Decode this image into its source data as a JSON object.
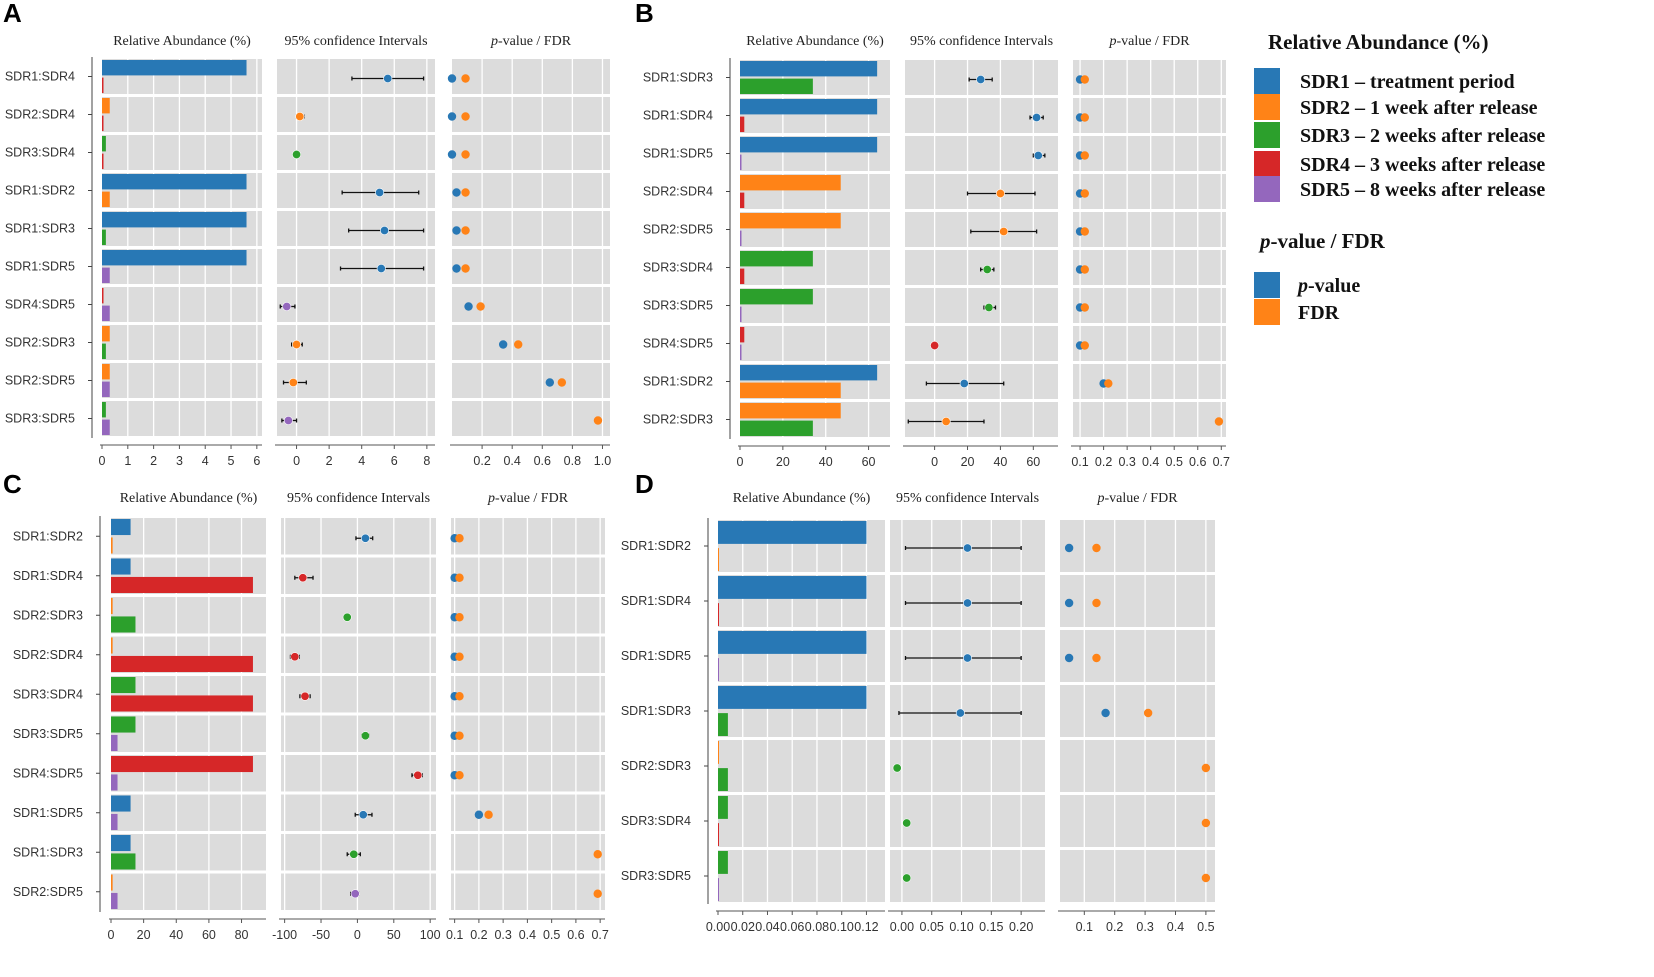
{
  "colors": {
    "SDR1": "#2878b5",
    "SDR2": "#ff8317",
    "SDR3": "#2ca02c",
    "SDR4": "#d62728",
    "SDR5": "#9467bd",
    "pvalue": "#2878b5",
    "fdr": "#ff8317",
    "panel_bg": "#dcdcdc"
  },
  "legend": {
    "ra_title": "Relative Abundance (%)",
    "ra_items": [
      {
        "key": "SDR1",
        "label": "SDR1 – treatment period"
      },
      {
        "key": "SDR2",
        "label": "SDR2 – 1 week after release"
      },
      {
        "key": "SDR3",
        "label": "SDR3 – 2 weeks after release"
      },
      {
        "key": "SDR4",
        "label": "SDR4 – 3 weeks after release"
      },
      {
        "key": "SDR5",
        "label": "SDR5 – 8 weeks after release"
      }
    ],
    "pf_title_prefix": "p",
    "pf_title_suffix": "-value / FDR",
    "pf_items": [
      {
        "key": "pvalue",
        "italic_part": "p",
        "rest": "-value"
      },
      {
        "key": "fdr",
        "italic_part": "",
        "rest": "FDR"
      }
    ]
  },
  "chart_data": [
    {
      "panel": "A",
      "type": "bar",
      "headers": {
        "abundance": "Relative Abundance (%)",
        "ci": "95% confidence Intervals",
        "pv_italic": "p",
        "pv_rest": "-value / FDR"
      },
      "categories": [
        "SDR1:SDR4",
        "SDR2:SDR4",
        "SDR3:SDR4",
        "SDR1:SDR2",
        "SDR1:SDR3",
        "SDR1:SDR5",
        "SDR4:SDR5",
        "SDR2:SDR3",
        "SDR2:SDR5",
        "SDR3:SDR5"
      ],
      "abundance": {
        "xlim": [
          0,
          6.2
        ],
        "ticks": [
          0,
          1,
          2,
          3,
          4,
          5,
          6
        ],
        "ticklabels": [
          "0",
          "1",
          "2",
          "3",
          "4",
          "5",
          "6"
        ],
        "pairs": [
          {
            "a": "SDR1",
            "va": 5.6,
            "b": "SDR4",
            "vb": 0.01
          },
          {
            "a": "SDR2",
            "va": 0.3,
            "b": "SDR4",
            "vb": 0.01
          },
          {
            "a": "SDR3",
            "va": 0.15,
            "b": "SDR4",
            "vb": 0.01
          },
          {
            "a": "SDR1",
            "va": 5.6,
            "b": "SDR2",
            "vb": 0.3
          },
          {
            "a": "SDR1",
            "va": 5.6,
            "b": "SDR3",
            "vb": 0.15
          },
          {
            "a": "SDR1",
            "va": 5.6,
            "b": "SDR5",
            "vb": 0.3
          },
          {
            "a": "SDR4",
            "va": 0.01,
            "b": "SDR5",
            "vb": 0.3
          },
          {
            "a": "SDR2",
            "va": 0.3,
            "b": "SDR3",
            "vb": 0.15
          },
          {
            "a": "SDR2",
            "va": 0.3,
            "b": "SDR5",
            "vb": 0.3
          },
          {
            "a": "SDR3",
            "va": 0.15,
            "b": "SDR5",
            "vb": 0.3
          }
        ]
      },
      "ci": {
        "xlim": [
          -1.2,
          8.5
        ],
        "ticks": [
          0,
          2,
          4,
          6,
          8
        ],
        "ticklabels": [
          "0",
          "2",
          "4",
          "6",
          "8"
        ],
        "points": [
          {
            "est": 5.6,
            "low": 3.4,
            "high": 7.8,
            "color": "SDR1"
          },
          {
            "est": 0.2,
            "low": 0.0,
            "high": 0.45,
            "color": "SDR2"
          },
          {
            "est": 0.0,
            "low": -0.05,
            "high": 0.05,
            "color": "SDR3"
          },
          {
            "est": 5.1,
            "low": 2.8,
            "high": 7.5,
            "color": "SDR1"
          },
          {
            "est": 5.4,
            "low": 3.2,
            "high": 7.8,
            "color": "SDR1"
          },
          {
            "est": 5.2,
            "low": 2.7,
            "high": 7.8,
            "color": "SDR1"
          },
          {
            "est": -0.6,
            "low": -1.0,
            "high": -0.1,
            "color": "SDR5"
          },
          {
            "est": 0.0,
            "low": -0.3,
            "high": 0.35,
            "color": "SDR2"
          },
          {
            "est": -0.2,
            "low": -0.8,
            "high": 0.6,
            "color": "SDR2"
          },
          {
            "est": -0.5,
            "low": -0.9,
            "high": 0.0,
            "color": "SDR5"
          }
        ]
      },
      "pv": {
        "xlim": [
          0,
          1.05
        ],
        "ticks": [
          0.2,
          0.4,
          0.6,
          0.8,
          1.0
        ],
        "ticklabels": [
          "0.2",
          "0.4",
          "0.6",
          "0.8",
          "1.0"
        ],
        "pvalue": [
          0.0,
          0.0,
          0.0,
          0.03,
          0.03,
          0.03,
          0.11,
          0.34,
          0.65,
          null
        ],
        "fdr": [
          0.09,
          0.09,
          0.09,
          0.09,
          0.09,
          0.09,
          0.19,
          0.44,
          0.73,
          0.97
        ]
      }
    },
    {
      "panel": "B",
      "type": "bar",
      "headers": {
        "abundance": "Relative Abundance (%)",
        "ci": "95% confidence Intervals",
        "pv_italic": "p",
        "pv_rest": "-value / FDR"
      },
      "categories": [
        "SDR1:SDR3",
        "SDR1:SDR4",
        "SDR1:SDR5",
        "SDR2:SDR4",
        "SDR2:SDR5",
        "SDR3:SDR4",
        "SDR3:SDR5",
        "SDR4:SDR5",
        "SDR1:SDR2",
        "SDR2:SDR3"
      ],
      "abundance": {
        "xlim": [
          0,
          70
        ],
        "ticks": [
          0,
          20,
          40,
          60
        ],
        "ticklabels": [
          "0",
          "20",
          "40",
          "60"
        ],
        "pairs": [
          {
            "a": "SDR1",
            "va": 64,
            "b": "SDR3",
            "vb": 34
          },
          {
            "a": "SDR1",
            "va": 64,
            "b": "SDR4",
            "vb": 2
          },
          {
            "a": "SDR1",
            "va": 64,
            "b": "SDR5",
            "vb": 0.2
          },
          {
            "a": "SDR2",
            "va": 47,
            "b": "SDR4",
            "vb": 2
          },
          {
            "a": "SDR2",
            "va": 47,
            "b": "SDR5",
            "vb": 0.2
          },
          {
            "a": "SDR3",
            "va": 34,
            "b": "SDR4",
            "vb": 2
          },
          {
            "a": "SDR3",
            "va": 34,
            "b": "SDR5",
            "vb": 0.2
          },
          {
            "a": "SDR4",
            "va": 2,
            "b": "SDR5",
            "vb": 0.2
          },
          {
            "a": "SDR1",
            "va": 64,
            "b": "SDR2",
            "vb": 47
          },
          {
            "a": "SDR2",
            "va": 47,
            "b": "SDR3",
            "vb": 34
          }
        ]
      },
      "ci": {
        "xlim": [
          -18,
          75
        ],
        "ticks": [
          0,
          20,
          40,
          60
        ],
        "ticklabels": [
          "0",
          "20",
          "40",
          "60"
        ],
        "points": [
          {
            "est": 28,
            "low": 21,
            "high": 35,
            "color": "SDR1"
          },
          {
            "est": 62,
            "low": 58,
            "high": 66,
            "color": "SDR1"
          },
          {
            "est": 63,
            "low": 60,
            "high": 67,
            "color": "SDR1"
          },
          {
            "est": 40,
            "low": 20,
            "high": 61,
            "color": "SDR2"
          },
          {
            "est": 42,
            "low": 22,
            "high": 62,
            "color": "SDR2"
          },
          {
            "est": 32,
            "low": 28,
            "high": 36,
            "color": "SDR3"
          },
          {
            "est": 33,
            "low": 30,
            "high": 37,
            "color": "SDR3"
          },
          {
            "est": 0,
            "low": -1,
            "high": 1,
            "color": "SDR4"
          },
          {
            "est": 18,
            "low": -5,
            "high": 42,
            "color": "SDR1"
          },
          {
            "est": 7,
            "low": -16,
            "high": 30,
            "color": "SDR2"
          }
        ]
      },
      "pv": {
        "xlim": [
          0.07,
          0.72
        ],
        "ticks": [
          0.1,
          0.2,
          0.3,
          0.4,
          0.5,
          0.6,
          0.7
        ],
        "ticklabels": [
          "0.1",
          "0.2",
          "0.3",
          "0.4",
          "0.5",
          "0.6",
          "0.7"
        ],
        "pvalue": [
          0.1,
          0.1,
          0.1,
          0.1,
          0.1,
          0.1,
          0.1,
          0.1,
          0.2,
          null
        ],
        "fdr": [
          0.12,
          0.12,
          0.12,
          0.12,
          0.12,
          0.12,
          0.12,
          0.12,
          0.22,
          0.69
        ]
      }
    },
    {
      "panel": "C",
      "type": "bar",
      "headers": {
        "abundance": "Relative Abundance (%)",
        "ci": "95% confidence Intervals",
        "pv_italic": "p",
        "pv_rest": "-value / FDR"
      },
      "categories": [
        "SDR1:SDR2",
        "SDR1:SDR4",
        "SDR2:SDR3",
        "SDR2:SDR4",
        "SDR3:SDR4",
        "SDR3:SDR5",
        "SDR4:SDR5",
        "SDR1:SDR5",
        "SDR1:SDR3",
        "SDR2:SDR5"
      ],
      "abundance": {
        "xlim": [
          0,
          95
        ],
        "ticks": [
          0,
          20,
          40,
          60,
          80
        ],
        "ticklabels": [
          "0",
          "20",
          "40",
          "60",
          "80"
        ],
        "pairs": [
          {
            "a": "SDR1",
            "va": 12,
            "b": "SDR2",
            "vb": 1
          },
          {
            "a": "SDR1",
            "va": 12,
            "b": "SDR4",
            "vb": 87
          },
          {
            "a": "SDR2",
            "va": 1,
            "b": "SDR3",
            "vb": 15
          },
          {
            "a": "SDR2",
            "va": 1,
            "b": "SDR4",
            "vb": 87
          },
          {
            "a": "SDR3",
            "va": 15,
            "b": "SDR4",
            "vb": 87
          },
          {
            "a": "SDR3",
            "va": 15,
            "b": "SDR5",
            "vb": 4
          },
          {
            "a": "SDR4",
            "va": 87,
            "b": "SDR5",
            "vb": 4
          },
          {
            "a": "SDR1",
            "va": 12,
            "b": "SDR5",
            "vb": 4
          },
          {
            "a": "SDR1",
            "va": 12,
            "b": "SDR3",
            "vb": 15
          },
          {
            "a": "SDR2",
            "va": 1,
            "b": "SDR5",
            "vb": 4
          }
        ]
      },
      "ci": {
        "xlim": [
          -105,
          108
        ],
        "ticks": [
          -100,
          -50,
          0,
          50,
          100
        ],
        "ticklabels": [
          "-100",
          "-50",
          "0",
          "50",
          "100"
        ],
        "points": [
          {
            "est": 11,
            "low": -2,
            "high": 21,
            "color": "SDR1"
          },
          {
            "est": -75,
            "low": -86,
            "high": -61,
            "color": "SDR4"
          },
          {
            "est": -14,
            "low": -16,
            "high": -12,
            "color": "SDR3"
          },
          {
            "est": -86,
            "low": -92,
            "high": -80,
            "color": "SDR4"
          },
          {
            "est": -72,
            "low": -79,
            "high": -65,
            "color": "SDR4"
          },
          {
            "est": 11,
            "low": 6,
            "high": 16,
            "color": "SDR3"
          },
          {
            "est": 83,
            "low": 75,
            "high": 89,
            "color": "SDR4"
          },
          {
            "est": 8,
            "low": -3,
            "high": 20,
            "color": "SDR1"
          },
          {
            "est": -5,
            "low": -14,
            "high": 4,
            "color": "SDR3"
          },
          {
            "est": -3,
            "low": -9,
            "high": 2,
            "color": "SDR5"
          }
        ]
      },
      "pv": {
        "xlim": [
          0.085,
          0.72
        ],
        "ticks": [
          0.1,
          0.2,
          0.3,
          0.4,
          0.5,
          0.6,
          0.7
        ],
        "ticklabels": [
          "0.1",
          "0.2",
          "0.3",
          "0.4",
          "0.5",
          "0.6",
          "0.7"
        ],
        "pvalue": [
          0.1,
          0.1,
          0.1,
          0.1,
          0.1,
          0.1,
          0.1,
          0.2,
          null,
          null
        ],
        "fdr": [
          0.12,
          0.12,
          0.12,
          0.12,
          0.12,
          0.12,
          0.12,
          0.24,
          0.69,
          0.69
        ]
      }
    },
    {
      "panel": "D",
      "type": "bar",
      "headers": {
        "abundance": "Relative Abundance (%)",
        "ci": "95% confidence Intervals",
        "pv_italic": "p",
        "pv_rest": "-value / FDR"
      },
      "categories": [
        "SDR1:SDR2",
        "SDR1:SDR4",
        "SDR1:SDR5",
        "SDR1:SDR3",
        "SDR2:SDR3",
        "SDR3:SDR4",
        "SDR3:SDR5"
      ],
      "abundance": {
        "xlim": [
          0,
          0.135
        ],
        "ticks": [
          0,
          0.02,
          0.04,
          0.06,
          0.08,
          0.1,
          0.12
        ],
        "ticklabels": [
          "0.00",
          "0.02",
          "0.04",
          "0.06",
          "0.08",
          "0.10",
          "0.12"
        ],
        "pairs": [
          {
            "a": "SDR1",
            "va": 0.12,
            "b": "SDR2",
            "vb": 0
          },
          {
            "a": "SDR1",
            "va": 0.12,
            "b": "SDR4",
            "vb": 0
          },
          {
            "a": "SDR1",
            "va": 0.12,
            "b": "SDR5",
            "vb": 0
          },
          {
            "a": "SDR1",
            "va": 0.12,
            "b": "SDR3",
            "vb": 0.008
          },
          {
            "a": "SDR2",
            "va": 0,
            "b": "SDR3",
            "vb": 0.008
          },
          {
            "a": "SDR3",
            "va": 0.008,
            "b": "SDR4",
            "vb": 0
          },
          {
            "a": "SDR3",
            "va": 0.008,
            "b": "SDR5",
            "vb": 0
          }
        ]
      },
      "ci": {
        "xlim": [
          -0.02,
          0.24
        ],
        "ticks": [
          0,
          0.05,
          0.1,
          0.15,
          0.2
        ],
        "ticklabels": [
          "0.00",
          "0.05",
          "0.10",
          "0.15",
          "0.20"
        ],
        "points": [
          {
            "est": 0.11,
            "low": 0.006,
            "high": 0.2,
            "color": "SDR1"
          },
          {
            "est": 0.11,
            "low": 0.006,
            "high": 0.2,
            "color": "SDR1"
          },
          {
            "est": 0.11,
            "low": 0.006,
            "high": 0.2,
            "color": "SDR1"
          },
          {
            "est": 0.098,
            "low": -0.005,
            "high": 0.2,
            "color": "SDR1"
          },
          {
            "est": -0.008,
            "low": -0.012,
            "high": -0.004,
            "color": "SDR3"
          },
          {
            "est": 0.008,
            "low": 0.004,
            "high": 0.012,
            "color": "SDR3"
          },
          {
            "est": 0.008,
            "low": 0.004,
            "high": 0.012,
            "color": "SDR3"
          }
        ]
      },
      "pv": {
        "xlim": [
          0.02,
          0.53
        ],
        "ticks": [
          0.1,
          0.2,
          0.3,
          0.4,
          0.5
        ],
        "ticklabels": [
          "0.1",
          "0.2",
          "0.3",
          "0.4",
          "0.5"
        ],
        "pvalue": [
          0.05,
          0.05,
          0.05,
          0.17,
          null,
          null,
          null
        ],
        "fdr": [
          0.14,
          0.14,
          0.14,
          0.31,
          0.5,
          0.5,
          0.5
        ]
      }
    }
  ]
}
